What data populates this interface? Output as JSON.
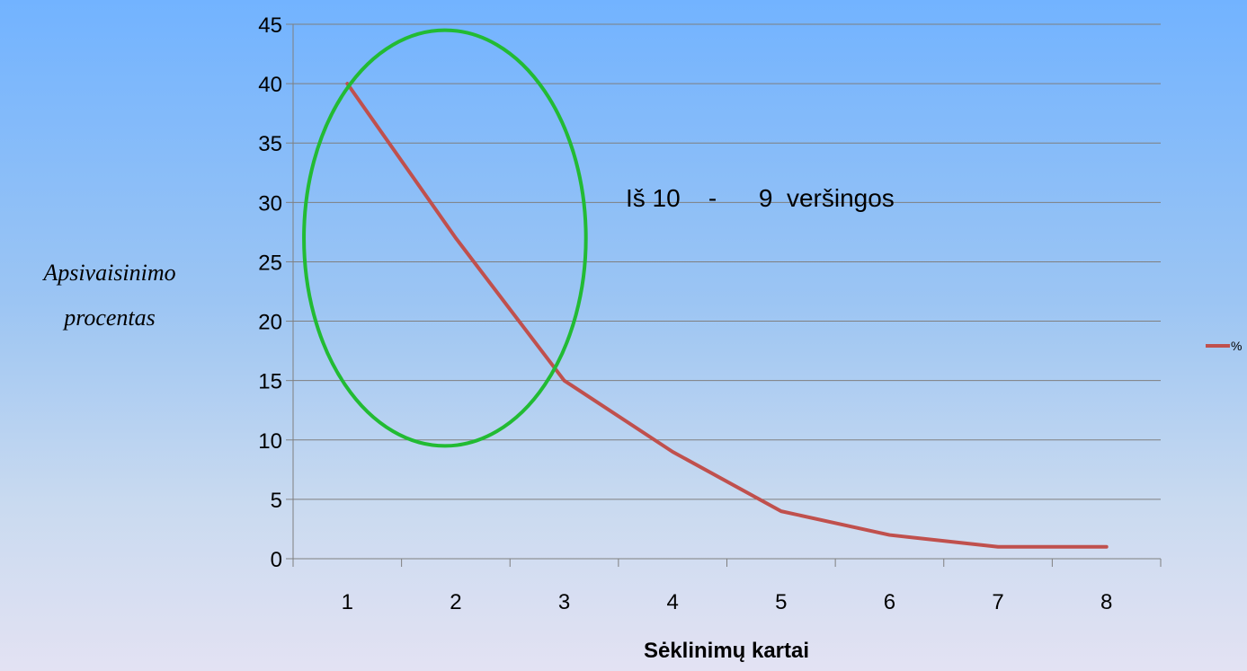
{
  "chart_data": {
    "type": "line",
    "categories": [
      "1",
      "2",
      "3",
      "4",
      "5",
      "6",
      "7",
      "8"
    ],
    "series": [
      {
        "name": "%",
        "values": [
          40,
          27,
          15,
          9,
          4,
          2,
          1,
          1
        ],
        "color": "#c0504d"
      }
    ],
    "xlabel": "Sėklinimų kartai",
    "ylabel_lines": [
      "Apsivaisinimo",
      "procentas"
    ],
    "ylim": [
      0,
      45
    ],
    "yticks": [
      0,
      5,
      10,
      15,
      20,
      25,
      30,
      35,
      40,
      45
    ],
    "grid": true,
    "legend_position": "right",
    "annotation": {
      "text": "Iš 10    -      9  veršingos"
    },
    "highlight": {
      "shape": "ellipse",
      "color": "#22bb33",
      "x_range": [
        0.6,
        3.2
      ],
      "y_range": [
        9.5,
        44.5
      ]
    }
  }
}
